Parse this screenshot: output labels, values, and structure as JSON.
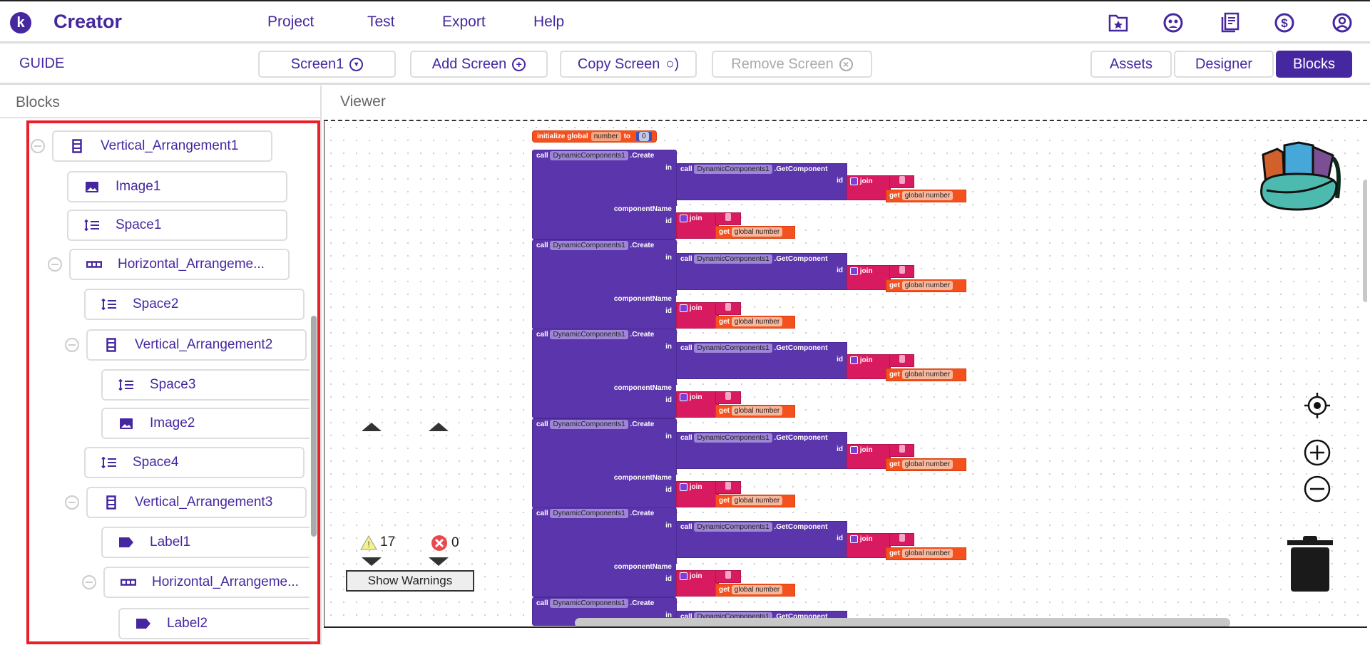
{
  "header": {
    "logo_letter": "k",
    "brand": "Creator",
    "menu": [
      "Project",
      "Test",
      "Export",
      "Help"
    ],
    "icons": [
      "folder-star-icon",
      "community-icon",
      "docs-icon",
      "pricing-icon",
      "account-icon"
    ]
  },
  "toolbar": {
    "guide": "GUIDE",
    "screen_select": "Screen1",
    "add_screen": "Add Screen",
    "copy_screen": "Copy Screen",
    "remove_screen": "Remove Screen",
    "assets": "Assets",
    "designer": "Designer",
    "blocks": "Blocks"
  },
  "colors": {
    "accent": "#4527a0",
    "highlight": "#e8202a",
    "block_purple": "#5b35ab",
    "block_pink": "#d81b60",
    "block_orange": "#f4511e"
  },
  "panel": {
    "title": "Blocks",
    "tree": [
      {
        "label": "Vertical_Arrangement1",
        "icon": "vertical",
        "collapsible": true
      },
      {
        "label": "Image1",
        "icon": "image"
      },
      {
        "label": "Space1",
        "icon": "space"
      },
      {
        "label": "Horizontal_Arrangeme...",
        "icon": "horizontal",
        "collapsible": true
      },
      {
        "label": "Space2",
        "icon": "space"
      },
      {
        "label": "Vertical_Arrangement2",
        "icon": "vertical",
        "collapsible": true
      },
      {
        "label": "Space3",
        "icon": "space"
      },
      {
        "label": "Image2",
        "icon": "image"
      },
      {
        "label": "Space4",
        "icon": "space"
      },
      {
        "label": "Vertical_Arrangement3",
        "icon": "vertical",
        "collapsible": true
      },
      {
        "label": "Label1",
        "icon": "label"
      },
      {
        "label": "Horizontal_Arrangeme...",
        "icon": "horizontal",
        "collapsible": true
      },
      {
        "label": "Label2",
        "icon": "label"
      }
    ]
  },
  "viewer": {
    "title": "Viewer",
    "init": {
      "prefix": "initialize global",
      "name": "number",
      "to": "to",
      "value": "0"
    },
    "create_block": {
      "call": "call",
      "component": "DynamicComponents1",
      "method": ".Create",
      "in": "in",
      "get_method": ".GetComponent",
      "id": "id",
      "join": "join",
      "get": "get",
      "var": "global number",
      "component_name": "componentName"
    },
    "create_block_count": 6,
    "warnings": {
      "count": "17",
      "errors": "0",
      "button": "Show Warnings"
    }
  }
}
